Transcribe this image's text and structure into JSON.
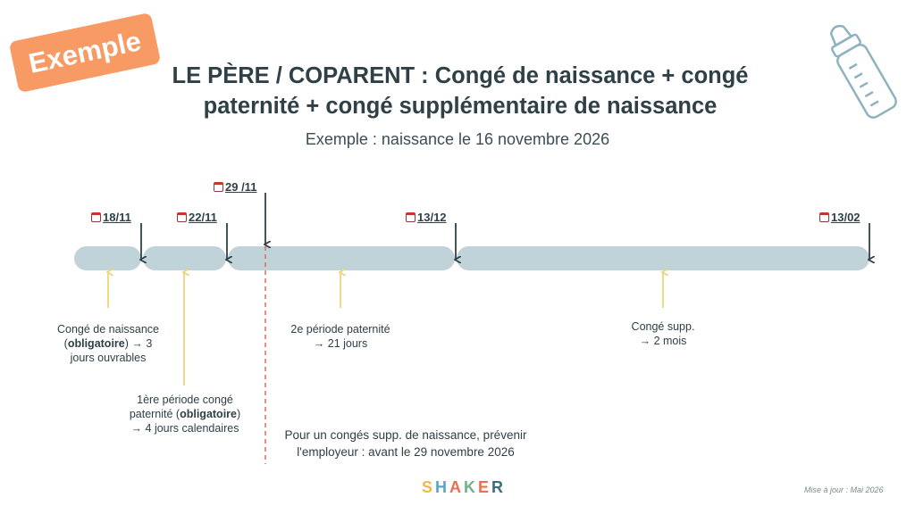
{
  "badge": "Exemple",
  "title_line1": "LE PÈRE / COPARENT : Congé de naissance + congé",
  "title_line2": "paternité + congé supplémentaire de naissance",
  "subtitle": "Exemple : naissance le 16 novembre 2026",
  "dates": {
    "d1": "18/11",
    "d2": "22/11",
    "d3": "29 /11",
    "d4": "13/12",
    "d5": "13/02"
  },
  "labels": {
    "l1_line1": "Congé de naissance",
    "l1_line2_pre": "(",
    "l1_line2_bold": "obligatoire",
    "l1_line2_post": ") → 3",
    "l1_line3": "jours ouvrables",
    "l2_line1": "1ère période congé",
    "l2_line2_pre": "paternité (",
    "l2_line2_bold": "obligatoire",
    "l2_line2_post": ")",
    "l2_line3": "→ 4 jours calendaires",
    "l3_line1": "2e période paternité",
    "l3_line2": "→ 21 jours",
    "l4_line1": "Congé supp.",
    "l4_line2": "→ 2 mois"
  },
  "note_line1": "Pour un congés supp. de naissance, prévenir",
  "note_line2": "l'employeur : avant le 29 novembre 2026",
  "logo": [
    "S",
    "H",
    "A",
    "K",
    "E",
    "R"
  ],
  "logo_colors": [
    "#f0b84a",
    "#5aa7c4",
    "#e8704f",
    "#6fb38a",
    "#e8704f",
    "#3c6b7a"
  ],
  "update": "Mise à jour : Mai 2026",
  "colors": {
    "segment": "#bfd3d9",
    "arrow_up": "#ecd57a",
    "arrow_down": "#2f4046",
    "dashed": "#e06a5e",
    "badge": "#f79a63"
  },
  "icons": {
    "calendar": "calendar-icon",
    "bottle": "baby-bottle-icon"
  }
}
